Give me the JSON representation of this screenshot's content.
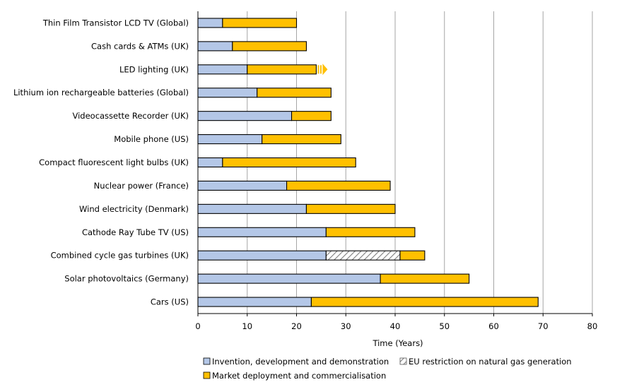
{
  "chart_data": {
    "type": "bar",
    "orientation": "horizontal",
    "stacked": true,
    "categories": [
      "Thin Film Transistor LCD TV (Global)",
      "Cash cards & ATMs (UK)",
      "LED lighting (UK)",
      "Lithium ion rechargeable batteries (Global)",
      "Videocassette Recorder (UK)",
      "Mobile phone (US)",
      "Compact fluorescent light bulbs (UK)",
      "Nuclear power (France)",
      "Wind electricity (Denmark)",
      "Cathode Ray Tube TV (US)",
      "Combined cycle gas turbines (UK)",
      "Solar photovoltaics (Germany)",
      "Cars (US)"
    ],
    "series": [
      {
        "name": "Invention, development and demonstration",
        "color": "#b4c7e7",
        "pattern": "solid",
        "values": [
          5,
          7,
          10,
          12,
          19,
          13,
          5,
          18,
          22,
          26,
          26,
          37,
          23
        ]
      },
      {
        "name": "EU restriction on natural gas generation",
        "color": "#ffffff",
        "pattern": "hatched",
        "values": [
          0,
          0,
          0,
          0,
          0,
          0,
          0,
          0,
          0,
          0,
          15,
          0,
          0
        ]
      },
      {
        "name": "Market deployment and commercialisation",
        "color": "#ffc000",
        "pattern": "solid",
        "values": [
          15,
          15,
          14,
          15,
          8,
          16,
          27,
          21,
          18,
          18,
          5,
          18,
          46
        ]
      }
    ],
    "annotations": [
      {
        "category": "LED lighting (UK)",
        "type": "arrow",
        "meaning": "ongoing",
        "color": "#ffc000"
      }
    ],
    "title": "",
    "xlabel": "Time (Years)",
    "ylabel": "",
    "xlim": [
      0,
      80
    ],
    "xticks": [
      0,
      10,
      20,
      30,
      40,
      50,
      60,
      70,
      80
    ],
    "grid": true,
    "legend_position": "bottom"
  }
}
